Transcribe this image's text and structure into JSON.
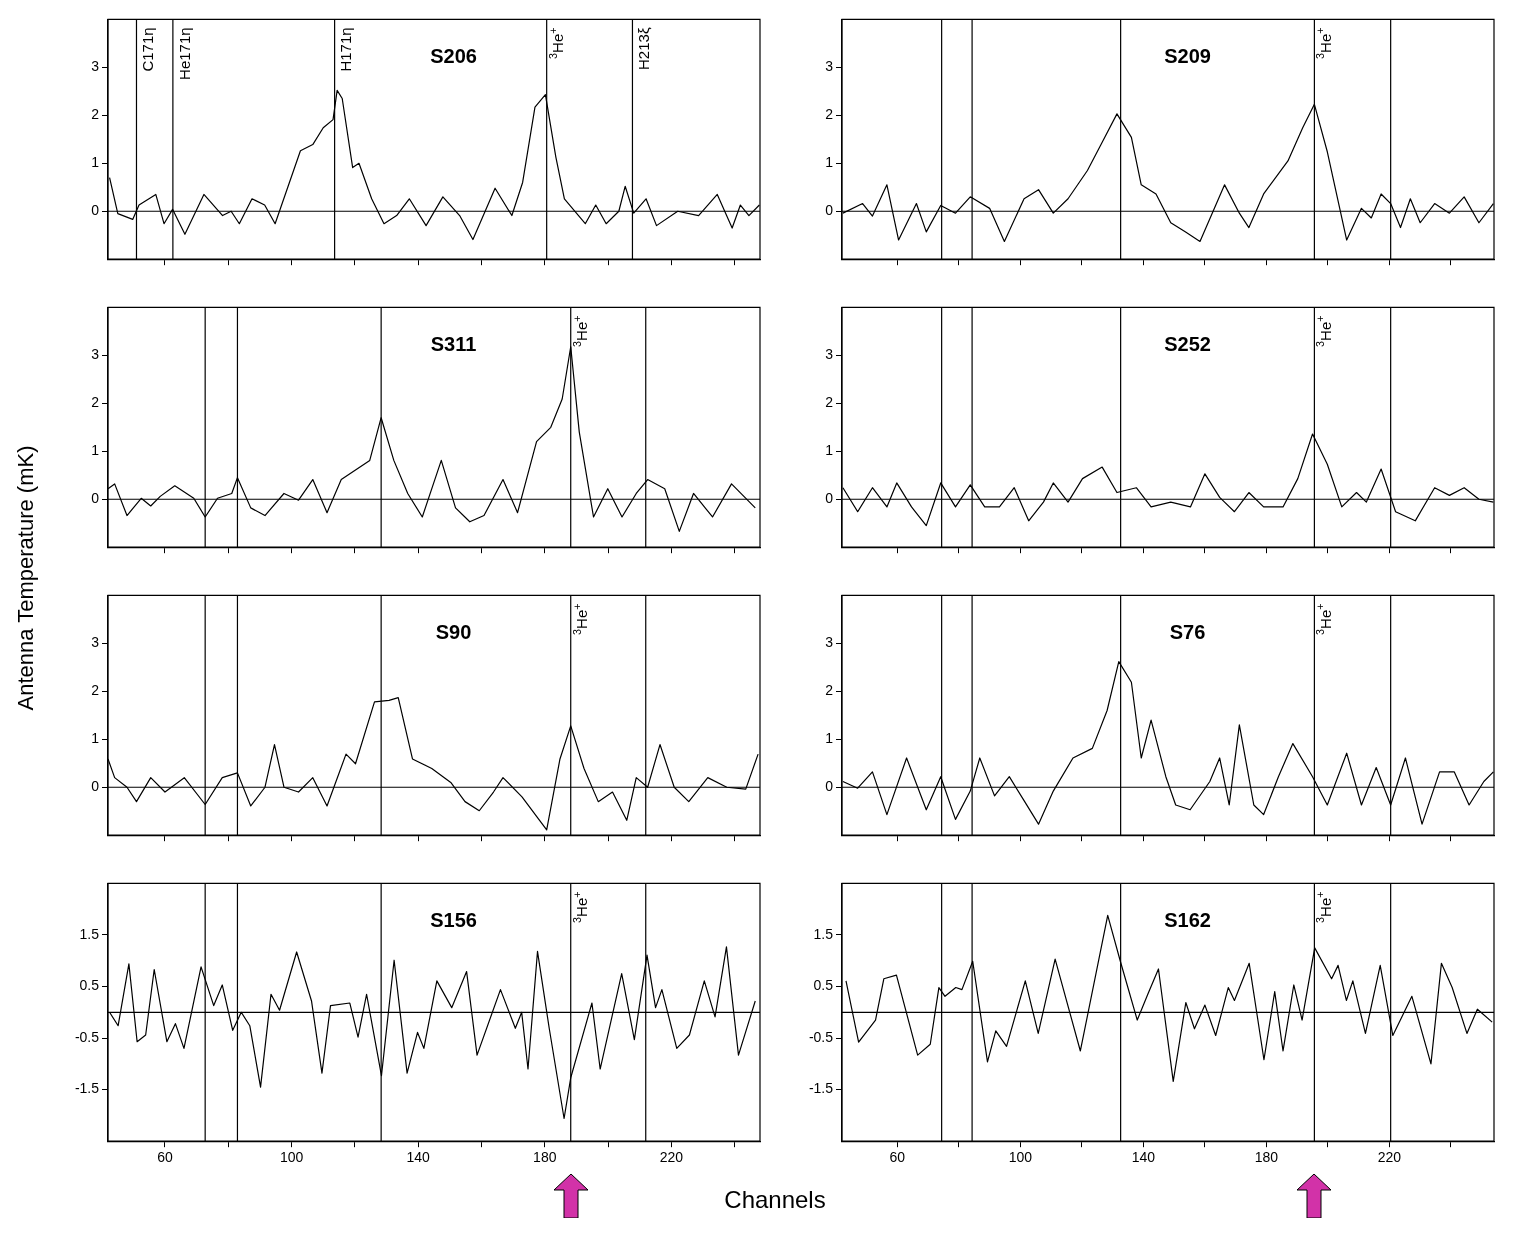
{
  "chart_data": [
    {
      "type": "line",
      "title": "S206",
      "color": "#000000",
      "xlim": [
        42,
        248
      ],
      "ylim": [
        -1,
        4
      ],
      "xticks": [
        60,
        {
          "value": 80,
          "label": null
        },
        100,
        {
          "value": 120,
          "label": null
        },
        140,
        {
          "value": 160,
          "label": null
        },
        180,
        {
          "value": 200,
          "label": null
        },
        220,
        {
          "value": 240,
          "label": null
        }
      ],
      "yticks": [
        0,
        1,
        2,
        3
      ],
      "tick_labels": "y",
      "ref_lines": [
        {
          "axis": "x",
          "value": 51.0,
          "label": "C171η"
        },
        {
          "axis": "x",
          "value": 62.5,
          "label": "He171η"
        },
        {
          "axis": "x",
          "value": 113.6,
          "label": "H171η"
        },
        {
          "axis": "x",
          "value": 180.6,
          "label": "$^{3}$He$^{+}$"
        },
        {
          "axis": "x",
          "value": 207.7,
          "label": "H213ξ"
        },
        {
          "axis": "y",
          "value": 0
        }
      ],
      "x": [
        42.5,
        45.1,
        49.8,
        51.8,
        57.1,
        59.7,
        62.4,
        66.3,
        72.3,
        78.2,
        80.9,
        83.5,
        87.5,
        91.5,
        94.8,
        102.8,
        106.7,
        110.0,
        113.1,
        114.4,
        116.0,
        119.3,
        121.3,
        125.3,
        129.2,
        133.2,
        137.2,
        142.5,
        147.8,
        153.1,
        157.3,
        164.3,
        169.6,
        173.0,
        176.9,
        180.2,
        183.5,
        186.2,
        192.8,
        196.1,
        199.4,
        203.4,
        205.4,
        208.1,
        212.0,
        215.3,
        222.0,
        228.6,
        234.5,
        239.2,
        241.8,
        244.5,
        247.8
      ],
      "values": [
        0.7,
        -0.05,
        -0.17,
        0.13,
        0.35,
        -0.26,
        0.04,
        -0.48,
        0.35,
        -0.09,
        0,
        -0.26,
        0.26,
        0.13,
        -0.26,
        1.26,
        1.39,
        1.74,
        1.91,
        2.52,
        2.35,
        0.91,
        1.0,
        0.26,
        -0.26,
        -0.09,
        0.26,
        -0.3,
        0.3,
        -0.09,
        -0.59,
        0.48,
        -0.09,
        0.6,
        2.17,
        2.43,
        1.13,
        0.26,
        -0.26,
        0.13,
        -0.26,
        0,
        0.52,
        -0.04,
        0.26,
        -0.3,
        0,
        -0.09,
        0.35,
        -0.35,
        0.13,
        -0.09,
        0.13
      ]
    },
    {
      "type": "line",
      "title": "S209",
      "color": "#000000",
      "xlim": [
        42,
        254
      ],
      "ylim": [
        -1,
        4
      ],
      "xticks": [
        60,
        {
          "value": 80,
          "label": null
        },
        100,
        {
          "value": 120,
          "label": null
        },
        140,
        {
          "value": 160,
          "label": null
        },
        180,
        {
          "value": 200,
          "label": null
        },
        220,
        {
          "value": 240,
          "label": null
        }
      ],
      "yticks": [
        0,
        1,
        2,
        3
      ],
      "tick_labels": "y",
      "ref_lines": [
        {
          "axis": "x",
          "value": 74.4
        },
        {
          "axis": "x",
          "value": 84.3
        },
        {
          "axis": "x",
          "value": 132.6
        },
        {
          "axis": "x",
          "value": 195.6,
          "label": "$^{3}$He$^{+}$"
        },
        {
          "axis": "x",
          "value": 220.4
        },
        {
          "axis": "y",
          "value": 0
        }
      ],
      "x": [
        42.3,
        48.7,
        51.9,
        56.6,
        60.4,
        66.2,
        69.4,
        74.1,
        78.9,
        83.7,
        90.0,
        94.8,
        101.2,
        105.9,
        110.7,
        115.5,
        121.8,
        126.6,
        131.4,
        136.1,
        139.3,
        144.1,
        148.9,
        153.6,
        158.4,
        166.4,
        171.2,
        174.3,
        179.1,
        187.0,
        191.8,
        195.6,
        199.8,
        206.1,
        210.9,
        214.1,
        217.3,
        220.4,
        223.6,
        226.8,
        230.0,
        234.7,
        239.5,
        244.3,
        249.1,
        253.8
      ],
      "values": [
        -0.04,
        0.16,
        -0.1,
        0.55,
        -0.6,
        0.16,
        -0.43,
        0.12,
        -0.04,
        0.3,
        0.06,
        -0.63,
        0.26,
        0.45,
        -0.04,
        0.26,
        0.85,
        1.44,
        2.03,
        1.54,
        0.55,
        0.36,
        -0.24,
        -0.43,
        -0.63,
        0.55,
        -0.04,
        -0.34,
        0.36,
        1.05,
        1.74,
        2.23,
        1.24,
        -0.6,
        0.06,
        -0.14,
        0.36,
        0.16,
        -0.34,
        0.26,
        -0.24,
        0.16,
        -0.04,
        0.3,
        -0.24,
        0.16
      ]
    },
    {
      "type": "line",
      "title": "S311",
      "ylabel": "Antenna Temperature (mK)",
      "color": "#000000",
      "xlim": [
        42,
        248
      ],
      "ylim": [
        -1,
        4
      ],
      "xticks": [
        60,
        {
          "value": 80,
          "label": null
        },
        100,
        {
          "value": 120,
          "label": null
        },
        140,
        {
          "value": 160,
          "label": null
        },
        180,
        {
          "value": 200,
          "label": null
        },
        220,
        {
          "value": 240,
          "label": null
        }
      ],
      "yticks": [
        0,
        1,
        2,
        3
      ],
      "tick_labels": "y",
      "ref_lines": [
        {
          "axis": "x",
          "value": 72.7
        },
        {
          "axis": "x",
          "value": 82.9
        },
        {
          "axis": "x",
          "value": 128.3
        },
        {
          "axis": "x",
          "value": 188.2,
          "label": "$^{3}$He$^{+}$"
        },
        {
          "axis": "x",
          "value": 211.9
        },
        {
          "axis": "y",
          "value": 0
        }
      ],
      "x": [
        42,
        44.1,
        48,
        52.5,
        55.5,
        58.5,
        63.1,
        69.1,
        72.7,
        76.6,
        81.1,
        82.9,
        87.1,
        91.6,
        97.6,
        102.2,
        106.7,
        111.2,
        115.7,
        120.2,
        124.7,
        128.3,
        132.3,
        136.7,
        141.3,
        147.3,
        151.8,
        156.3,
        160.8,
        166.8,
        171.4,
        177.4,
        181.9,
        185.5,
        188.2,
        190.9,
        195.4,
        199.9,
        204.4,
        208.9,
        212.5,
        217.9,
        222.5,
        227,
        233,
        239,
        246.5
      ],
      "values": [
        0.22,
        0.32,
        -0.34,
        0.02,
        -0.14,
        0.06,
        0.28,
        0.02,
        -0.37,
        0.02,
        0.12,
        0.45,
        -0.18,
        -0.34,
        0.12,
        -0.02,
        0.41,
        -0.28,
        0.41,
        0.61,
        0.81,
        1.7,
        0.81,
        0.12,
        -0.37,
        0.81,
        -0.18,
        -0.47,
        -0.34,
        0.41,
        -0.28,
        1.2,
        1.5,
        2.09,
        3.18,
        1.4,
        -0.37,
        0.22,
        -0.37,
        0.12,
        0.41,
        0.22,
        -0.67,
        0.12,
        -0.37,
        0.32,
        -0.18
      ]
    },
    {
      "type": "line",
      "title": "S252",
      "color": "#000000",
      "xlim": [
        42,
        254
      ],
      "ylim": [
        -1,
        4
      ],
      "xticks": [
        60,
        {
          "value": 80,
          "label": null
        },
        100,
        {
          "value": 120,
          "label": null
        },
        140,
        {
          "value": 160,
          "label": null
        },
        180,
        {
          "value": 200,
          "label": null
        },
        220,
        {
          "value": 240,
          "label": null
        }
      ],
      "yticks": [
        0,
        1,
        2,
        3
      ],
      "tick_labels": "y",
      "ref_lines": [
        {
          "axis": "x",
          "value": 74.4
        },
        {
          "axis": "x",
          "value": 84.3
        },
        {
          "axis": "x",
          "value": 132.6
        },
        {
          "axis": "x",
          "value": 195.6,
          "label": "$^{3}$He$^{+}$"
        },
        {
          "axis": "x",
          "value": 220.4
        },
        {
          "axis": "y",
          "value": 0
        }
      ],
      "x": [
        42.3,
        47.1,
        51.9,
        56.6,
        59.8,
        64.6,
        69.4,
        74.1,
        78.9,
        83.7,
        88.4,
        93.2,
        98,
        102.7,
        107.5,
        110.7,
        115.5,
        120.2,
        126.6,
        131.4,
        137.7,
        142.5,
        148.9,
        155.3,
        160,
        164.8,
        169.6,
        174.3,
        179.1,
        185.4,
        190.2,
        195,
        199.8,
        204.5,
        209.3,
        212.5,
        217.3,
        222,
        228.4,
        234.7,
        239.5,
        244.3,
        249.1,
        253.8
      ],
      "values": [
        0.24,
        -0.26,
        0.24,
        -0.16,
        0.34,
        -0.16,
        -0.55,
        0.34,
        -0.16,
        0.3,
        -0.16,
        -0.16,
        0.24,
        -0.45,
        -0.06,
        0.34,
        -0.06,
        0.43,
        0.67,
        0.14,
        0.24,
        -0.16,
        -0.06,
        -0.16,
        0.53,
        0.04,
        -0.26,
        0.14,
        -0.16,
        -0.16,
        0.43,
        1.36,
        0.73,
        -0.16,
        0.14,
        -0.06,
        0.63,
        -0.26,
        -0.45,
        0.24,
        0.08,
        0.24,
        0,
        -0.06
      ]
    },
    {
      "type": "line",
      "title": "S90",
      "color": "#000000",
      "xlim": [
        42,
        248
      ],
      "ylim": [
        -1,
        4
      ],
      "xticks": [
        60,
        {
          "value": 80,
          "label": null
        },
        100,
        {
          "value": 120,
          "label": null
        },
        140,
        {
          "value": 160,
          "label": null
        },
        180,
        {
          "value": 200,
          "label": null
        },
        220,
        {
          "value": 240,
          "label": null
        }
      ],
      "yticks": [
        0,
        1,
        2,
        3
      ],
      "tick_labels": "y",
      "ref_lines": [
        {
          "axis": "x",
          "value": 72.7
        },
        {
          "axis": "x",
          "value": 82.9
        },
        {
          "axis": "x",
          "value": 128.3
        },
        {
          "axis": "x",
          "value": 188.2,
          "label": "$^{3}$He$^{+}$"
        },
        {
          "axis": "x",
          "value": 211.9
        },
        {
          "axis": "y",
          "value": 0
        }
      ],
      "x": [
        42,
        44.1,
        48,
        51,
        55.5,
        60,
        66.1,
        72.7,
        78.1,
        82.9,
        87.1,
        91.6,
        94.6,
        97.6,
        102.2,
        106.7,
        111.2,
        117.2,
        120.2,
        126.2,
        130.8,
        133.7,
        138.2,
        144.3,
        150.3,
        154.8,
        159.3,
        163.8,
        166.8,
        172.8,
        180.6,
        184.8,
        188.2,
        192.4,
        196.9,
        201.4,
        205.9,
        208.9,
        212.5,
        216.4,
        220.9,
        225.5,
        231.5,
        237.5,
        243.5,
        247.4
      ],
      "values": [
        0.59,
        0.2,
        0,
        -0.3,
        0.2,
        -0.1,
        0.2,
        -0.36,
        0.2,
        0.3,
        -0.39,
        0,
        0.89,
        0,
        -0.1,
        0.2,
        -0.39,
        0.69,
        0.49,
        1.78,
        1.81,
        1.87,
        0.59,
        0.39,
        0.1,
        -0.3,
        -0.49,
        -0.1,
        0.2,
        -0.2,
        -0.89,
        0.59,
        1.28,
        0.39,
        -0.3,
        -0.1,
        -0.69,
        0.2,
        0,
        0.89,
        0,
        -0.3,
        0.2,
        0,
        -0.04,
        0.69
      ]
    },
    {
      "type": "line",
      "title": "S76",
      "color": "#000000",
      "xlim": [
        42,
        254
      ],
      "ylim": [
        -1,
        4
      ],
      "xticks": [
        60,
        {
          "value": 80,
          "label": null
        },
        100,
        {
          "value": 120,
          "label": null
        },
        140,
        {
          "value": 160,
          "label": null
        },
        180,
        {
          "value": 200,
          "label": null
        },
        220,
        {
          "value": 240,
          "label": null
        }
      ],
      "yticks": [
        0,
        1,
        2,
        3
      ],
      "tick_labels": "y",
      "ref_lines": [
        {
          "axis": "x",
          "value": 74.4
        },
        {
          "axis": "x",
          "value": 84.3
        },
        {
          "axis": "x",
          "value": 132.6
        },
        {
          "axis": "x",
          "value": 195.6,
          "label": "$^{3}$He$^{+}$"
        },
        {
          "axis": "x",
          "value": 220.4
        },
        {
          "axis": "y",
          "value": 0
        }
      ],
      "x": [
        42.3,
        47.1,
        51.9,
        56.6,
        63,
        69.4,
        74.1,
        78.9,
        83.7,
        86.8,
        91.6,
        96.4,
        101.2,
        105.9,
        110.7,
        117.1,
        123.4,
        128.2,
        132,
        136.1,
        139.3,
        142.5,
        147.3,
        150.5,
        155.2,
        161.6,
        164.8,
        167.9,
        171.2,
        175.9,
        179.1,
        183.9,
        188.6,
        195,
        199.8,
        206.1,
        210.9,
        215.7,
        220.4,
        225.2,
        230.6,
        236.3,
        241.1,
        245.9,
        250.7,
        253.8
      ],
      "values": [
        0.12,
        -0.02,
        0.32,
        -0.57,
        0.61,
        -0.47,
        0.22,
        -0.67,
        -0.08,
        0.61,
        -0.18,
        0.22,
        -0.28,
        -0.77,
        -0.08,
        0.61,
        0.81,
        1.6,
        2.62,
        2.19,
        0.61,
        1.4,
        0.22,
        -0.37,
        -0.47,
        0.12,
        0.61,
        -0.37,
        1.3,
        -0.37,
        -0.57,
        0.22,
        0.91,
        0.22,
        -0.37,
        0.71,
        -0.37,
        0.41,
        -0.37,
        0.61,
        -0.77,
        0.32,
        0.32,
        -0.37,
        0.12,
        0.32
      ]
    },
    {
      "type": "line",
      "title": "S156",
      "xlabel": "Channels",
      "color": "#000000",
      "xlim": [
        42,
        248
      ],
      "ylim": [
        -2.5,
        2.5
      ],
      "xticks": [
        60,
        {
          "value": 80,
          "label": null
        },
        100,
        {
          "value": 120,
          "label": null
        },
        140,
        {
          "value": 160,
          "label": null
        },
        180,
        {
          "value": 200,
          "label": null
        },
        220,
        {
          "value": 240,
          "label": null
        }
      ],
      "yticks": [
        -1.5,
        -0.5,
        0.5,
        1.5
      ],
      "ref_lines": [
        {
          "axis": "x",
          "value": 72.7
        },
        {
          "axis": "x",
          "value": 82.9
        },
        {
          "axis": "x",
          "value": 128.3
        },
        {
          "axis": "x",
          "value": 188.2,
          "label": "$^{3}$He$^{+}$"
        },
        {
          "axis": "x",
          "value": 211.9
        },
        {
          "axis": "y",
          "value": 0
        }
      ],
      "x": [
        42.5,
        45.2,
        48.6,
        51.2,
        53.9,
        56.6,
        60.6,
        63.3,
        66,
        71.4,
        75.4,
        78.1,
        81.4,
        84.1,
        86.8,
        90.2,
        93.5,
        96.2,
        101.6,
        106.3,
        109.6,
        112.3,
        118.4,
        121,
        123.7,
        128.4,
        132.4,
        136.5,
        139.8,
        141.8,
        145.9,
        150.6,
        155.3,
        158.6,
        166,
        170.7,
        172.7,
        174.7,
        177.7,
        181.4,
        186.1,
        188.2,
        194.9,
        197.5,
        204.3,
        208.3,
        212.3,
        215,
        217,
        221.7,
        225.7,
        230.4,
        233.8,
        237.4,
        241.2,
        246.5
      ],
      "values": [
        0,
        -0.26,
        0.94,
        -0.57,
        -0.44,
        0.83,
        -0.57,
        -0.22,
        -0.7,
        0.88,
        0.13,
        0.53,
        -0.35,
        0,
        -0.26,
        -1.45,
        0.35,
        0.04,
        1.17,
        0.22,
        -1.18,
        0.13,
        0.18,
        -0.48,
        0.35,
        -1.23,
        1.01,
        -1.18,
        -0.39,
        -0.7,
        0.61,
        0.09,
        0.79,
        -0.83,
        0.44,
        -0.31,
        0,
        -1.1,
        1.18,
        -0.31,
        -2.06,
        -1.27,
        0.18,
        -1.1,
        0.75,
        -0.53,
        1.11,
        0.09,
        0.44,
        -0.7,
        -0.44,
        0.61,
        -0.09,
        1.27,
        -0.83,
        0.22
      ]
    },
    {
      "type": "line",
      "title": "S162",
      "color": "#000000",
      "xlim": [
        42,
        254
      ],
      "ylim": [
        -2.5,
        2.5
      ],
      "xticks": [
        60,
        {
          "value": 80,
          "label": null
        },
        100,
        {
          "value": 120,
          "label": null
        },
        140,
        {
          "value": 160,
          "label": null
        },
        180,
        {
          "value": 200,
          "label": null
        },
        220,
        {
          "value": 240,
          "label": null
        }
      ],
      "yticks": [
        -1.5,
        -0.5,
        0.5,
        1.5
      ],
      "ref_lines": [
        {
          "axis": "x",
          "value": 74.4
        },
        {
          "axis": "x",
          "value": 84.3
        },
        {
          "axis": "x",
          "value": 132.6
        },
        {
          "axis": "x",
          "value": 195.6,
          "label": "$^{3}$He$^{+}$"
        },
        {
          "axis": "x",
          "value": 220.4
        },
        {
          "axis": "y",
          "value": 0
        }
      ],
      "x": [
        43.3,
        47.4,
        52.9,
        55.6,
        59.7,
        66.6,
        70.7,
        73.5,
        75.5,
        79,
        81,
        84.5,
        89.3,
        92,
        95.5,
        101.6,
        105.8,
        111.3,
        119.5,
        128.4,
        132.5,
        138,
        141.5,
        144.9,
        149.7,
        153.8,
        156.6,
        160,
        163.5,
        167.6,
        169.6,
        174.4,
        179.2,
        182.7,
        185.4,
        188.9,
        191.6,
        195.7,
        201.2,
        203.3,
        206,
        208.1,
        212.2,
        217,
        221.1,
        227.3,
        233.5,
        236.9,
        240.4,
        245.2,
        248.6,
        253.4
      ],
      "values": [
        0.61,
        -0.58,
        -0.15,
        0.65,
        0.72,
        -0.83,
        -0.62,
        0.48,
        0.31,
        0.48,
        0.44,
        0.99,
        -0.96,
        -0.36,
        -0.66,
        0.61,
        -0.41,
        1.03,
        -0.75,
        1.88,
        0.99,
        -0.15,
        0.36,
        0.84,
        -1.34,
        0.19,
        -0.32,
        0.14,
        -0.45,
        0.48,
        0.23,
        0.95,
        -0.92,
        0.4,
        -0.75,
        0.53,
        -0.15,
        1.25,
        0.65,
        0.91,
        0.23,
        0.61,
        -0.41,
        0.91,
        -0.45,
        0.31,
        -1.0,
        0.95,
        0.48,
        -0.41,
        0.06,
        -0.19
      ]
    }
  ]
}
